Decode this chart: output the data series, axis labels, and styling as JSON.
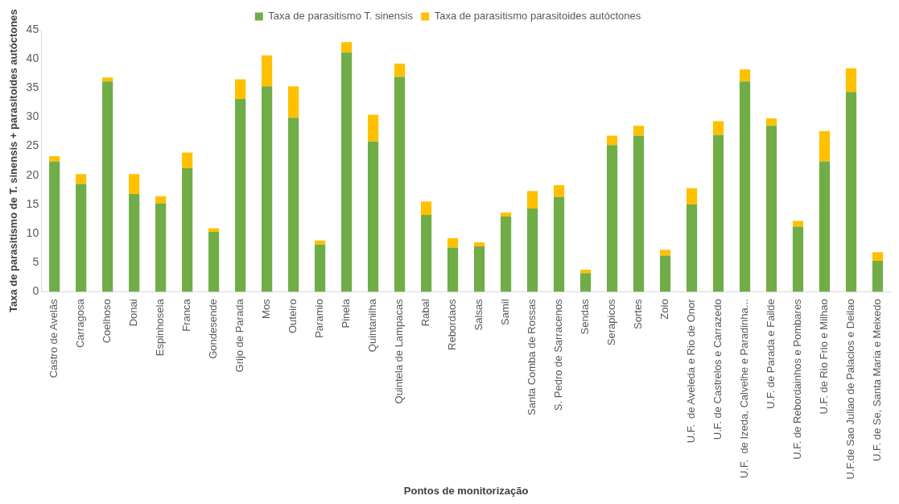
{
  "chart_data": {
    "type": "bar",
    "stacked": true,
    "xlabel": "Pontos de monitorização",
    "ylabel": "Taxa de parasitismo de T. sinensis + parasitoides autóctones",
    "categories": [
      "Castro de Avelãs",
      "Carragosa",
      "Coelhoso",
      "Donai",
      "Espinhosela",
      "Franca",
      "Gondesende",
      "Grijo de Parada",
      "Mos",
      "Outeiro",
      "Paramio",
      "Pinela",
      "Quintanilha",
      "Quintela de Lampacas",
      "Rabal",
      "Rebordaos",
      "Salsas",
      "Samil",
      "Santa Comba de Rossas",
      "S. Pedro de Sarracenos",
      "Sendas",
      "Serapicos",
      "Sortes",
      "Zoio",
      "U.F.  de Aveleda e Rio de Onor",
      "U.F. de Castrelos e Carrazedo",
      "U.F.  de Izeda, Calvelhe e Paradinha...",
      "U.F. de Parada e Failde",
      "U.F. de Rebordainhos e Pombares",
      "U.F. de Rio Frio e Milhao",
      "U.F.de Sao Juliao de Palacios e Deilao",
      "U.F. de Se, Santa Maria e Meixedo"
    ],
    "series": [
      {
        "name": "Taxa de parasitismo T. sinensis",
        "color": "#70ad47",
        "values": [
          22.4,
          18.5,
          36.1,
          16.8,
          15.2,
          21.2,
          10.3,
          33.1,
          35.3,
          29.9,
          8.1,
          41.1,
          25.8,
          36.9,
          13.2,
          7.6,
          7.8,
          12.9,
          14.3,
          16.3,
          3.2,
          25.2,
          26.8,
          6.2,
          15.0,
          26.9,
          36.1,
          28.5,
          11.2,
          22.4,
          34.3,
          5.3
        ]
      },
      {
        "name": "Taxa de parasitismo parasitoides autóctones",
        "color": "#ffc000",
        "values": [
          0.9,
          1.7,
          0.7,
          3.4,
          1.2,
          2.7,
          0.6,
          3.4,
          5.3,
          5.4,
          0.7,
          1.8,
          4.6,
          2.3,
          2.3,
          1.6,
          0.7,
          0.7,
          3.0,
          2.0,
          0.6,
          1.6,
          1.7,
          1.0,
          2.8,
          2.4,
          2.1,
          1.3,
          1.0,
          5.2,
          4.1,
          1.5
        ]
      }
    ],
    "ylim": [
      0,
      45
    ],
    "yticks": [
      0,
      5,
      10,
      15,
      20,
      25,
      30,
      35,
      40,
      45
    ],
    "grid": false,
    "legend": "top"
  }
}
